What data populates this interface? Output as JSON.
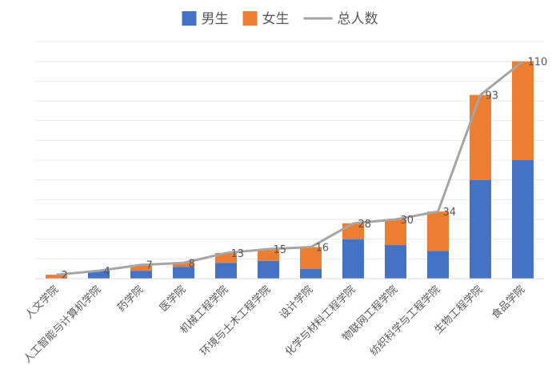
{
  "chart_data": {
    "type": "bar",
    "stacked": true,
    "categories": [
      "人文学院",
      "人工智能与计算机学院",
      "药学院",
      "医学院",
      "机械工程学院",
      "环境与土木工程学院",
      "设计学院",
      "化学与材料工程学院",
      "物联网工程学院",
      "纺织科学与工程学院",
      "生物工程学院",
      "食品学院"
    ],
    "series": [
      {
        "name": "男生",
        "kind": "bar",
        "color": "#4472C4",
        "values": [
          0,
          4,
          4,
          6,
          8,
          9,
          5,
          20,
          17,
          14,
          50,
          60
        ]
      },
      {
        "name": "女生",
        "kind": "bar",
        "color": "#ED7D31",
        "values": [
          2,
          0,
          3,
          2,
          5,
          6,
          11,
          8,
          13,
          20,
          43,
          50
        ]
      },
      {
        "name": "总人数",
        "kind": "line",
        "color": "#A5A5A5",
        "values": [
          2,
          4,
          7,
          8,
          13,
          15,
          16,
          28,
          30,
          34,
          93,
          110
        ],
        "data_labels": [
          "2",
          "4",
          "7",
          "8",
          "13",
          "15",
          "16",
          "28",
          "30",
          "34",
          "93",
          "110"
        ]
      }
    ],
    "ylim": [
      0,
      120
    ],
    "grid": true,
    "legend": "top"
  }
}
